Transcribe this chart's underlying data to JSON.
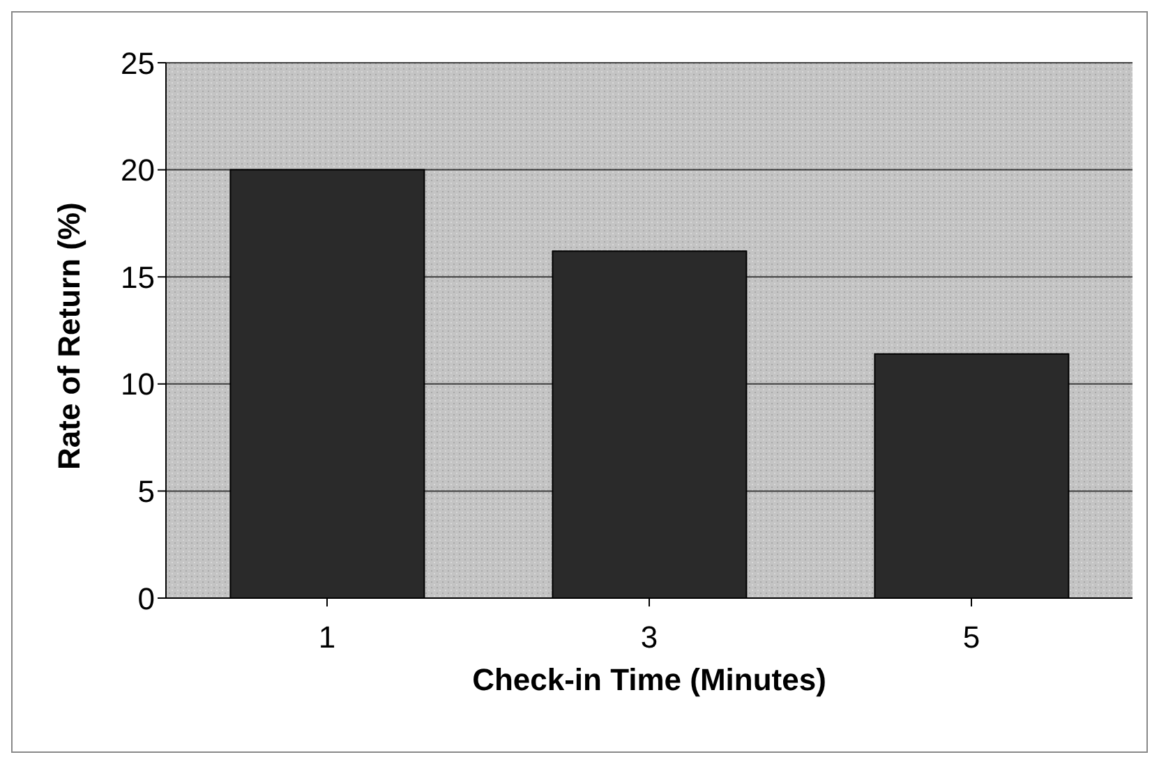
{
  "chart_data": {
    "type": "bar",
    "xlabel": "Check-in Time (Minutes)",
    "ylabel": "Rate of Return (%)",
    "categories": [
      "1",
      "3",
      "5"
    ],
    "values": [
      20,
      16.2,
      11.4
    ],
    "color": "#2a2a2a",
    "ylim": [
      0,
      25
    ],
    "yticks": [
      0,
      5,
      10,
      15,
      20,
      25
    ],
    "grid": "y",
    "legend": false
  }
}
